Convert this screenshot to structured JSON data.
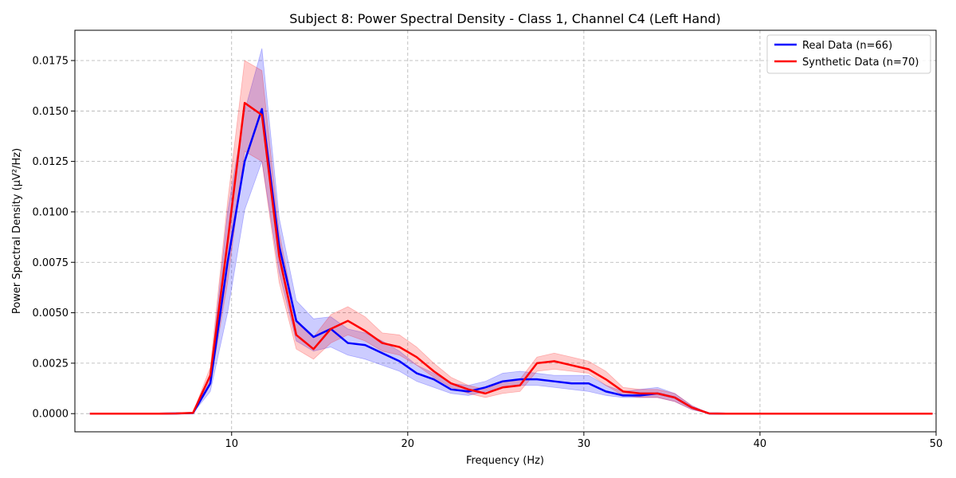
{
  "chart_data": {
    "type": "line",
    "title": "Subject 8: Power Spectral Density - Class 1, Channel C4 (Left Hand)",
    "xlabel": "Frequency (Hz)",
    "ylabel": "Power Spectral Density (μV²/Hz)",
    "xlim": [
      1.1,
      50
    ],
    "ylim": [
      -0.0009,
      0.019
    ],
    "xticks": [
      10,
      20,
      30,
      40,
      50
    ],
    "xtick_labels": [
      "10",
      "20",
      "30",
      "40",
      "50"
    ],
    "yticks": [
      0,
      0.0025,
      0.005,
      0.0075,
      0.01,
      0.0125,
      0.015,
      0.0175
    ],
    "ytick_labels": [
      "0.0000",
      "0.0025",
      "0.0050",
      "0.0075",
      "0.0100",
      "0.0125",
      "0.0150",
      "0.0175"
    ],
    "grid": true,
    "legend_position": "top-right",
    "x": [
      1.95,
      2.93,
      3.91,
      4.88,
      5.86,
      6.84,
      7.81,
      8.79,
      9.77,
      10.74,
      11.72,
      12.7,
      13.67,
      14.65,
      15.63,
      16.6,
      17.58,
      18.55,
      19.53,
      20.51,
      21.48,
      22.46,
      23.44,
      24.41,
      25.39,
      26.37,
      27.34,
      28.32,
      29.3,
      30.27,
      31.25,
      32.23,
      33.2,
      34.18,
      35.16,
      36.13,
      37.11,
      38.09,
      39.06,
      40.04,
      41.02,
      41.99,
      42.97,
      43.95,
      44.92,
      45.9,
      46.88,
      47.85,
      48.83,
      49.8
    ],
    "series": [
      {
        "name": "Real Data (n=66)",
        "color": "#0000ff",
        "fill_color": "#0000ff",
        "values": [
          0,
          0,
          0,
          0,
          0,
          1e-05,
          3e-05,
          0.0015,
          0.0075,
          0.0125,
          0.0151,
          0.0083,
          0.0046,
          0.0038,
          0.0042,
          0.0035,
          0.0034,
          0.003,
          0.0026,
          0.002,
          0.0017,
          0.0012,
          0.0011,
          0.0013,
          0.0016,
          0.0017,
          0.0017,
          0.0016,
          0.0015,
          0.0015,
          0.0011,
          0.0009,
          0.0009,
          0.001,
          0.0008,
          0.0003,
          1e-05,
          0,
          0,
          0,
          0,
          0,
          0,
          0,
          0,
          0,
          0,
          0,
          0,
          0
        ],
        "lower": [
          0,
          0,
          0,
          0,
          0,
          1e-05,
          3e-05,
          0.0011,
          0.005,
          0.0101,
          0.0125,
          0.007,
          0.0036,
          0.0031,
          0.0033,
          0.0029,
          0.0027,
          0.0024,
          0.0021,
          0.0016,
          0.0013,
          0.001,
          0.0009,
          0.0011,
          0.0013,
          0.0014,
          0.0014,
          0.0013,
          0.0012,
          0.0011,
          0.0009,
          0.0008,
          0.0008,
          0.0008,
          0.0006,
          0.0002,
          1e-05,
          0,
          0,
          0,
          0,
          0,
          0,
          0,
          0,
          0,
          0,
          0,
          0,
          0
        ],
        "upper": [
          0,
          0,
          0,
          0,
          0,
          1e-05,
          3e-05,
          0.0019,
          0.01,
          0.015,
          0.0181,
          0.0097,
          0.0056,
          0.0047,
          0.0048,
          0.0042,
          0.004,
          0.0036,
          0.0031,
          0.0024,
          0.002,
          0.0015,
          0.0014,
          0.0016,
          0.002,
          0.0021,
          0.002,
          0.0019,
          0.0019,
          0.0019,
          0.0014,
          0.0011,
          0.0012,
          0.0013,
          0.001,
          0.0004,
          1e-05,
          0,
          0,
          0,
          0,
          0,
          0,
          0,
          0,
          0,
          0,
          0,
          0,
          0
        ]
      },
      {
        "name": "Synthetic Data (n=70)",
        "color": "#ff0000",
        "fill_color": "#ff0000",
        "values": [
          0,
          0,
          0,
          0,
          0,
          1e-05,
          4e-05,
          0.0019,
          0.0085,
          0.0154,
          0.0148,
          0.0078,
          0.0039,
          0.0032,
          0.0042,
          0.0046,
          0.0041,
          0.0035,
          0.0033,
          0.0028,
          0.0021,
          0.0015,
          0.0012,
          0.001,
          0.0013,
          0.0014,
          0.0025,
          0.0026,
          0.0024,
          0.0022,
          0.0017,
          0.0011,
          0.001,
          0.001,
          0.0008,
          0.0003,
          1e-05,
          0,
          0,
          0,
          0,
          0,
          0,
          0,
          0,
          0,
          0,
          0,
          0,
          0
        ],
        "lower": [
          0,
          0,
          0,
          0,
          0,
          1e-05,
          3e-05,
          0.0014,
          0.0065,
          0.013,
          0.0125,
          0.0065,
          0.0032,
          0.0027,
          0.0035,
          0.0039,
          0.0036,
          0.0031,
          0.0029,
          0.0024,
          0.0018,
          0.0013,
          0.001,
          0.0008,
          0.001,
          0.0011,
          0.0021,
          0.0022,
          0.0021,
          0.002,
          0.0014,
          0.0009,
          0.0008,
          0.0008,
          0.0006,
          0.0002,
          1e-05,
          0,
          0,
          0,
          0,
          0,
          0,
          0,
          0,
          0,
          0,
          0,
          0,
          0
        ],
        "upper": [
          0,
          0,
          0,
          0,
          0,
          1e-05,
          5e-05,
          0.0023,
          0.0105,
          0.0175,
          0.017,
          0.009,
          0.0046,
          0.0038,
          0.0049,
          0.0053,
          0.0048,
          0.004,
          0.0039,
          0.0033,
          0.0025,
          0.0018,
          0.0014,
          0.0012,
          0.0016,
          0.0017,
          0.0028,
          0.003,
          0.0028,
          0.0026,
          0.0021,
          0.0013,
          0.0012,
          0.0012,
          0.001,
          0.0004,
          1e-05,
          0,
          0,
          0,
          0,
          0,
          0,
          0,
          0,
          0,
          0,
          0,
          0,
          0
        ]
      }
    ]
  }
}
